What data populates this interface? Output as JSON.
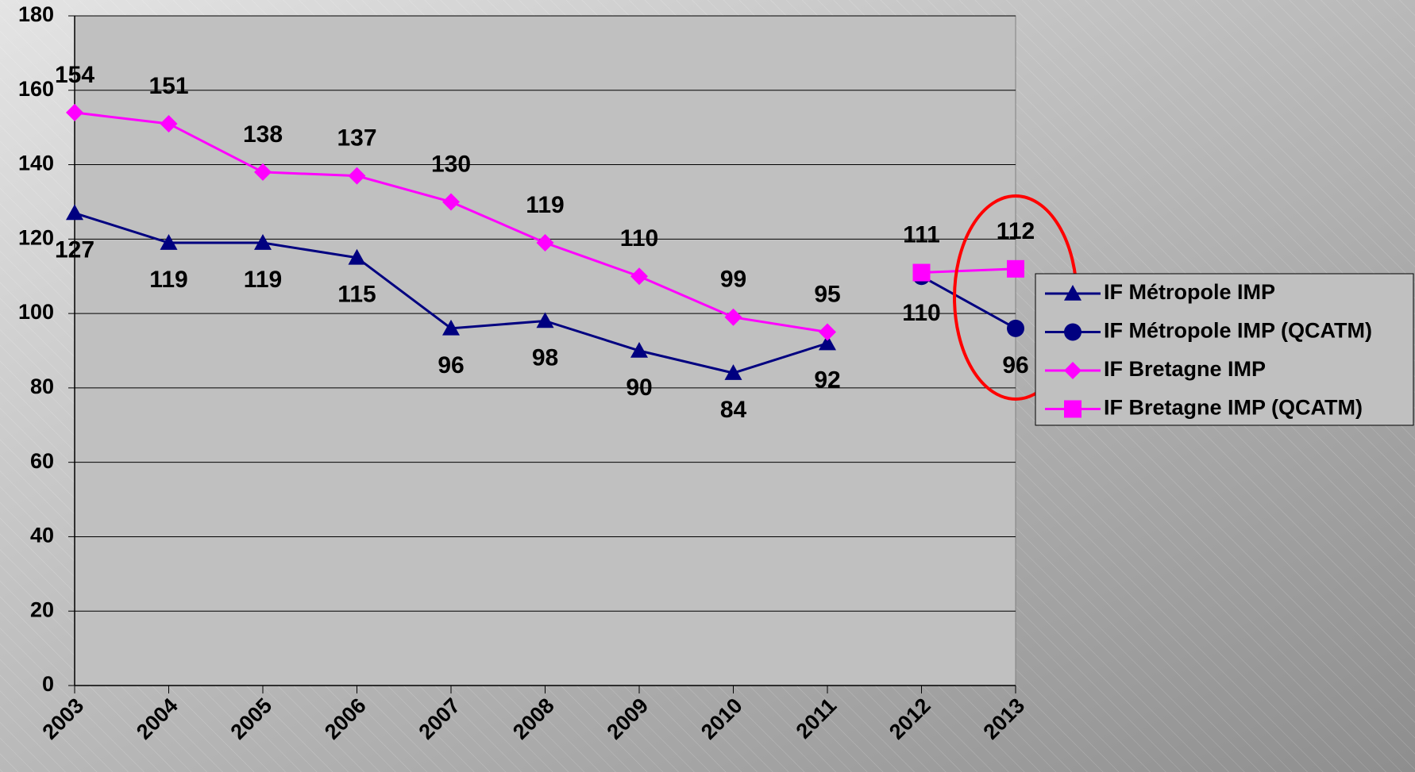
{
  "chart_data": {
    "type": "line",
    "categories": [
      "2003",
      "2004",
      "2005",
      "2006",
      "2007",
      "2008",
      "2009",
      "2010",
      "2011",
      "2012",
      "2013"
    ],
    "series": [
      {
        "name": "IF Métropole IMP",
        "color": "#000080",
        "marker": "triangle",
        "values": [
          127,
          119,
          119,
          115,
          96,
          98,
          90,
          84,
          92,
          null,
          null
        ]
      },
      {
        "name": "IF Métropole IMP (QCATM)",
        "color": "#000080",
        "marker": "circle",
        "values": [
          null,
          null,
          null,
          null,
          null,
          null,
          null,
          null,
          null,
          110,
          96
        ]
      },
      {
        "name": "IF Bretagne IMP",
        "color": "#ff00ff",
        "marker": "diamond",
        "values": [
          154,
          151,
          138,
          137,
          130,
          119,
          110,
          99,
          95,
          null,
          null
        ]
      },
      {
        "name": "IF Bretagne IMP (QCATM)",
        "color": "#ff00ff",
        "marker": "square",
        "values": [
          null,
          null,
          null,
          null,
          null,
          null,
          null,
          null,
          null,
          111,
          112
        ]
      }
    ],
    "ylim": [
      0,
      180
    ],
    "yticks": [
      0,
      20,
      40,
      60,
      80,
      100,
      120,
      140,
      160,
      180
    ],
    "grid": true,
    "legend": "right"
  }
}
